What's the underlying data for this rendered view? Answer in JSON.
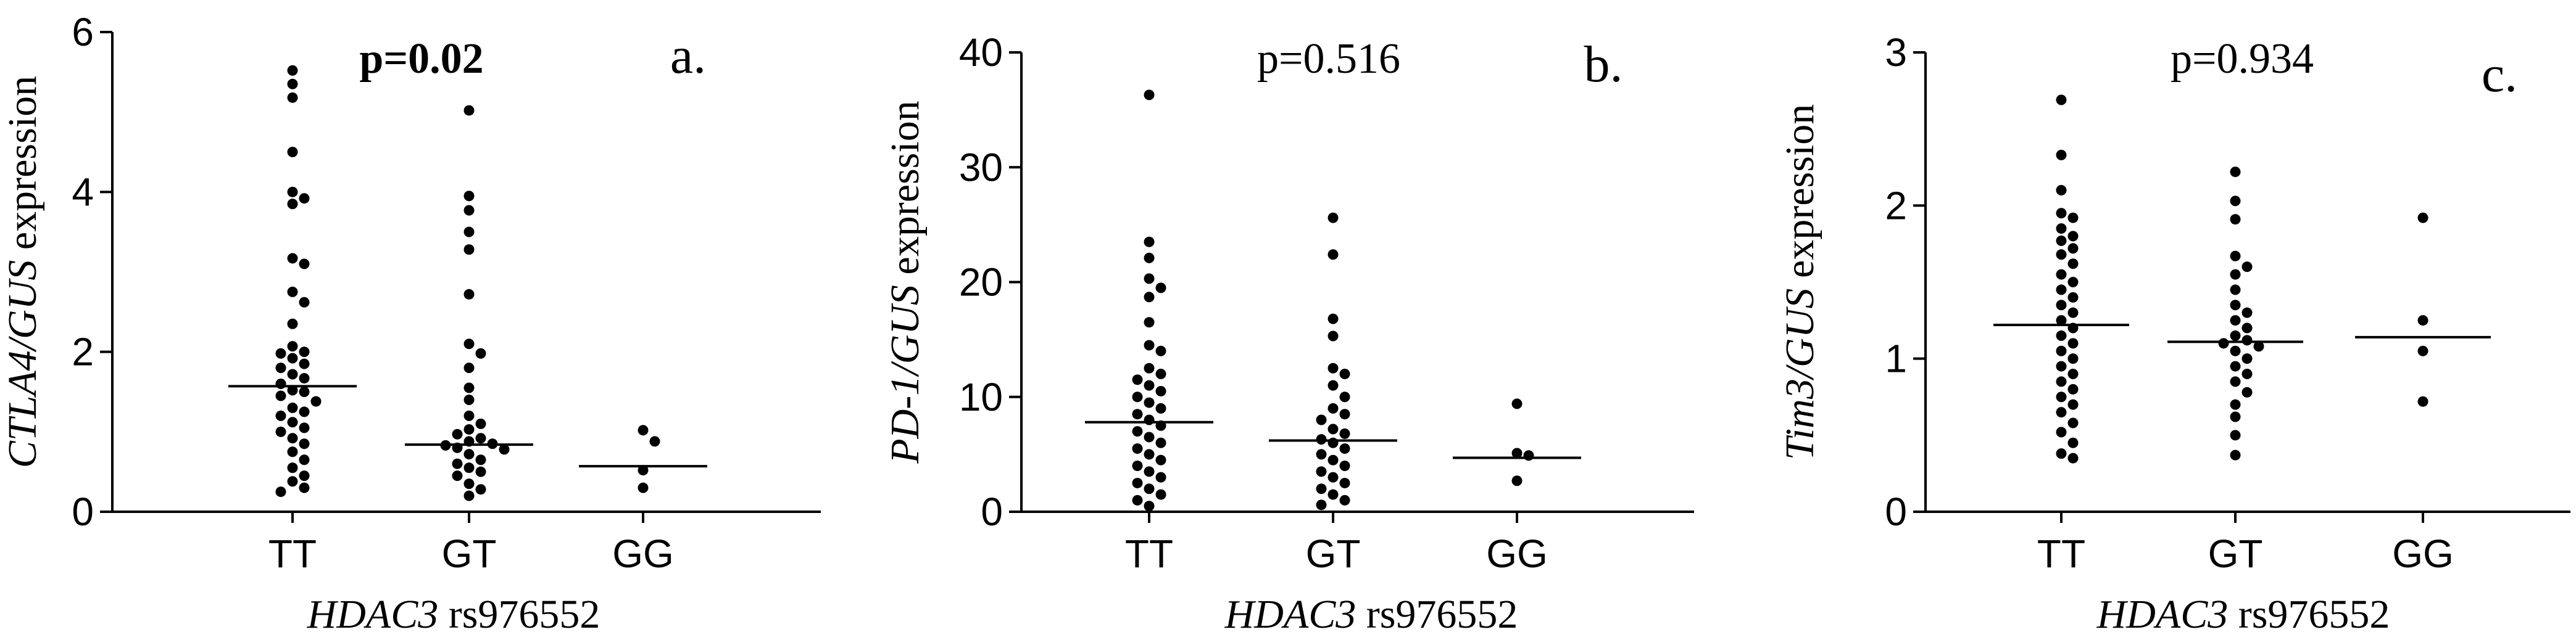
{
  "chart_data": [
    {
      "type": "scatter",
      "panel_label": "a.",
      "p_value": "p=0.02",
      "p_value_bold": true,
      "ylabel": {
        "italic": "CTLA4/GUS",
        "plain": " expression"
      },
      "xlabel": {
        "italic": "HDAC3",
        "plain": " rs976552"
      },
      "categories": [
        "TT",
        "GT",
        "GG"
      ],
      "ylim": [
        0,
        6
      ],
      "yticks": [
        0,
        2,
        4,
        6
      ],
      "medians": [
        1.57,
        0.84,
        0.57
      ],
      "points": [
        [
          5.52,
          5.35,
          5.18,
          4.5,
          4.0,
          3.92,
          3.85,
          3.17,
          3.1,
          2.75,
          2.62,
          2.35,
          2.07,
          2.0,
          1.98,
          1.92,
          1.85,
          1.8,
          1.72,
          1.67,
          1.6,
          1.52,
          1.5,
          1.45,
          1.38,
          1.3,
          1.25,
          1.2,
          1.12,
          1.05,
          1.0,
          0.92,
          0.85,
          0.75,
          0.65,
          0.55,
          0.45,
          0.38,
          0.3,
          0.25
        ],
        [
          5.02,
          3.95,
          3.77,
          3.5,
          3.28,
          2.72,
          2.1,
          1.98,
          1.8,
          1.55,
          1.4,
          1.2,
          1.1,
          1.03,
          0.97,
          0.92,
          0.88,
          0.85,
          0.83,
          0.8,
          0.78,
          0.72,
          0.65,
          0.6,
          0.55,
          0.5,
          0.45,
          0.35,
          0.28,
          0.2
        ],
        [
          1.02,
          0.88,
          0.52,
          0.3
        ]
      ]
    },
    {
      "type": "scatter",
      "panel_label": "b.",
      "p_value": "p=0.516",
      "p_value_bold": false,
      "ylabel": {
        "italic": "PD-1/GUS",
        "plain": " expression"
      },
      "xlabel": {
        "italic": "HDAC3",
        "plain": " rs976552"
      },
      "categories": [
        "TT",
        "GT",
        "GG"
      ],
      "ylim": [
        0,
        40
      ],
      "yticks": [
        0,
        10,
        20,
        30,
        40
      ],
      "medians": [
        7.8,
        6.2,
        4.7
      ],
      "points": [
        [
          36.3,
          23.5,
          22.1,
          20.3,
          19.5,
          18.7,
          16.5,
          14.5,
          14.0,
          12.5,
          12.0,
          11.5,
          11.0,
          10.5,
          10.0,
          9.5,
          9.0,
          8.5,
          8.0,
          7.5,
          7.0,
          6.5,
          6.0,
          5.5,
          5.0,
          4.5,
          4.0,
          3.5,
          3.0,
          2.5,
          2.0,
          1.5,
          1.0,
          0.5
        ],
        [
          25.6,
          22.4,
          16.8,
          15.3,
          12.5,
          12.0,
          11.0,
          10.0,
          9.0,
          8.5,
          8.0,
          7.2,
          6.8,
          6.3,
          6.0,
          5.5,
          5.0,
          4.5,
          4.0,
          3.5,
          3.0,
          2.5,
          2.0,
          1.5,
          1.0,
          0.6
        ],
        [
          9.4,
          5.1,
          4.9,
          2.7
        ]
      ]
    },
    {
      "type": "scatter",
      "panel_label": "c.",
      "p_value": "p=0.934",
      "p_value_bold": false,
      "ylabel": {
        "italic": "Tim3/GUS",
        "plain": " expression"
      },
      "xlabel": {
        "italic": "HDAC3",
        "plain": " rs976552"
      },
      "categories": [
        "TT",
        "GT",
        "GG"
      ],
      "ylim": [
        0,
        3
      ],
      "yticks": [
        0,
        1,
        2,
        3
      ],
      "medians": [
        1.22,
        1.11,
        1.14
      ],
      "points": [
        [
          2.69,
          2.33,
          2.1,
          1.95,
          1.92,
          1.85,
          1.8,
          1.77,
          1.72,
          1.68,
          1.62,
          1.55,
          1.5,
          1.45,
          1.4,
          1.35,
          1.3,
          1.25,
          1.2,
          1.15,
          1.1,
          1.05,
          1.0,
          0.95,
          0.9,
          0.85,
          0.8,
          0.75,
          0.7,
          0.65,
          0.58,
          0.52,
          0.45,
          0.38,
          0.35
        ],
        [
          2.22,
          2.03,
          1.91,
          1.67,
          1.6,
          1.55,
          1.45,
          1.35,
          1.3,
          1.25,
          1.2,
          1.15,
          1.12,
          1.1,
          1.08,
          1.05,
          1.0,
          0.95,
          0.9,
          0.85,
          0.78,
          0.7,
          0.62,
          0.5,
          0.37
        ],
        [
          1.92,
          1.25,
          1.05,
          0.72
        ]
      ]
    }
  ]
}
